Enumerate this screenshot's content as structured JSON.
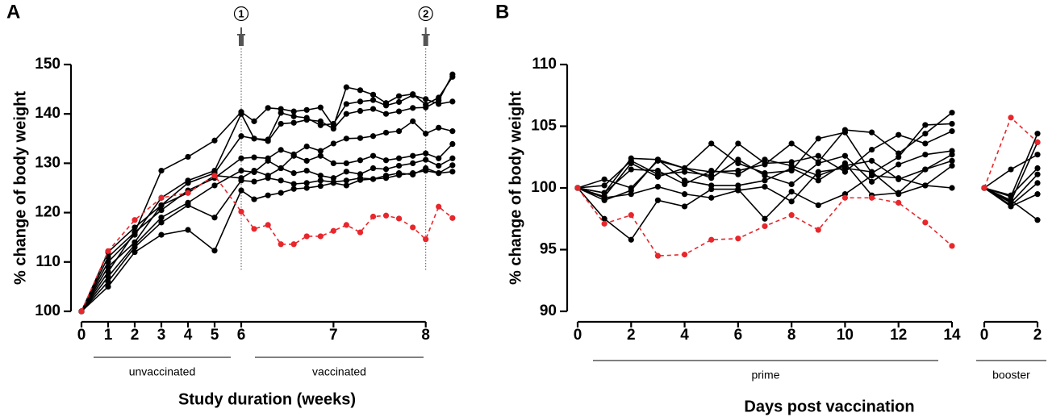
{
  "chart_data": [
    {
      "type": "line",
      "panel": "A",
      "y_label": "% change of body weight",
      "x_label": "Study duration (weeks)",
      "xlim": [
        0,
        8.3
      ],
      "xscale_segments": [
        [
          0,
          6
        ],
        [
          6,
          8.3
        ]
      ],
      "xticks": [
        0,
        1,
        2,
        3,
        4,
        5,
        6,
        7,
        8
      ],
      "ylim": [
        100,
        150
      ],
      "yticks": [
        100,
        110,
        120,
        130,
        140,
        150
      ],
      "vaccinations": [
        {
          "x": 6,
          "label": "1"
        },
        {
          "x": 8,
          "label": "2"
        }
      ],
      "periods": [
        {
          "label": "unvaccinated"
        },
        {
          "label": "vaccinated"
        }
      ],
      "x": [
        0,
        1,
        2,
        3,
        4,
        5,
        6,
        6.14,
        6.29,
        6.43,
        6.57,
        6.71,
        6.86,
        7,
        7.14,
        7.29,
        7.43,
        7.57,
        7.71,
        7.86,
        8,
        8.14,
        8.29
      ],
      "series": [
        {
          "color": "#000000",
          "values": [
            100,
            111,
            116,
            128.5,
            131.3,
            134.6,
            140.4,
            138.5,
            141.2,
            141,
            140.5,
            140.8,
            141.3,
            137.5,
            145.4,
            144.8,
            143.9,
            142.2,
            143.6,
            144,
            141.9,
            143.3,
            147.5
          ]
        },
        {
          "color": "#000000",
          "values": [
            100,
            110,
            115.5,
            123,
            126.5,
            128.5,
            140,
            135,
            134.8,
            140.2,
            139.5,
            139.2,
            137.7,
            138,
            142,
            142.5,
            142.8,
            141.7,
            142.4,
            143.8,
            143,
            142,
            142.5
          ]
        },
        {
          "color": "#000000",
          "values": [
            100,
            109,
            114,
            121.5,
            126,
            128,
            135.5,
            135,
            134.5,
            138,
            138.2,
            138.8,
            138.5,
            137,
            140,
            140.6,
            141,
            140,
            140.5,
            141.2,
            141.3,
            142.7,
            148
          ]
        },
        {
          "color": "#000000",
          "values": [
            100,
            108,
            116,
            120.5,
            124.5,
            127,
            131,
            131.2,
            131,
            132.7,
            131.8,
            133.4,
            132.5,
            134,
            135,
            135.1,
            135.5,
            136.2,
            136.5,
            138.5,
            136,
            137.2,
            136.5
          ]
        },
        {
          "color": "#000000",
          "values": [
            100,
            107,
            113.5,
            119,
            122,
            125.5,
            128.5,
            128.2,
            130.5,
            129,
            131.5,
            130.5,
            131.5,
            130,
            130,
            130.6,
            131.5,
            130.6,
            131,
            131.5,
            132,
            131,
            133.9
          ]
        },
        {
          "color": "#000000",
          "values": [
            100,
            112,
            117,
            121.5,
            124,
            127.5,
            127,
            128.5,
            127.5,
            129,
            128,
            128.5,
            127.5,
            127,
            128.3,
            127.8,
            129,
            128.8,
            129.5,
            130,
            130.7,
            129.5,
            131
          ]
        },
        {
          "color": "#000000",
          "values": [
            100,
            106,
            113,
            118,
            121.5,
            119,
            126.5,
            126.3,
            127,
            126.5,
            125.8,
            126,
            126.5,
            126.2,
            126.5,
            127,
            126.8,
            127.5,
            128,
            127.7,
            129,
            128,
            129.6
          ]
        },
        {
          "color": "#000000",
          "values": [
            100,
            105,
            112,
            115.5,
            116.5,
            112.3,
            124.5,
            122.7,
            123.5,
            124,
            124.8,
            125,
            125.4,
            126,
            125.5,
            126.6,
            126.8,
            127,
            127.6,
            128,
            128.5,
            128,
            128.3
          ]
        },
        {
          "color": "#e8262b",
          "dashed": true,
          "values": [
            100,
            112.2,
            118.5,
            123,
            124,
            127.5,
            120.2,
            116.7,
            117.5,
            113.6,
            113.6,
            115.2,
            115.2,
            116.3,
            117.5,
            116,
            119.2,
            119.4,
            118.8,
            117,
            114.6,
            121.2,
            118.9
          ]
        }
      ]
    },
    {
      "type": "line",
      "panel": "B",
      "y_label": "% change of body weight",
      "x_label": "Days post vaccination",
      "xlim": [
        0,
        14
      ],
      "xticks": [
        0,
        2,
        4,
        6,
        8,
        10,
        12,
        14
      ],
      "booster_xlim": [
        0,
        2
      ],
      "booster_xticks": [
        0,
        2
      ],
      "ylim": [
        90,
        110
      ],
      "yticks": [
        90,
        95,
        100,
        105,
        110
      ],
      "periods": [
        {
          "label": "prime"
        },
        {
          "label": "booster"
        }
      ],
      "x": [
        0,
        1,
        2,
        3,
        4,
        5,
        6,
        7,
        8,
        9,
        10,
        11,
        12,
        13,
        14
      ],
      "booster_x": [
        0,
        1,
        2
      ],
      "series": [
        {
          "color": "#000000",
          "values": [
            100,
            99.6,
            102.4,
            102.3,
            101.6,
            101.3,
            101.4,
            101.9,
            103.6,
            102.1,
            104.7,
            104.5,
            102.8,
            104.4,
            106.1
          ],
          "booster_values": [
            100,
            99.3,
            104.4
          ]
        },
        {
          "color": "#000000",
          "values": [
            100,
            100.7,
            100,
            102.2,
            101.6,
            103.6,
            102,
            101.2,
            101.4,
            104,
            104.5,
            101.2,
            102.5,
            105.1,
            105.2
          ],
          "booster_values": [
            100,
            98.9,
            103.7
          ]
        },
        {
          "color": "#000000",
          "values": [
            100,
            100.2,
            102.2,
            101.1,
            101.3,
            101,
            103.6,
            102,
            102.1,
            102.6,
            101.3,
            103.1,
            104.3,
            103.6,
            104.6
          ],
          "booster_values": [
            100,
            101.5,
            102.7
          ]
        },
        {
          "color": "#000000",
          "values": [
            100,
            99.3,
            102,
            100.9,
            101.6,
            100.8,
            102.3,
            101,
            100.3,
            102,
            102.6,
            100.5,
            101.9,
            102.7,
            103
          ],
          "booster_values": [
            100,
            99.4,
            101.6
          ]
        },
        {
          "color": "#000000",
          "values": [
            100,
            99.6,
            101.5,
            101.4,
            100.3,
            101.4,
            101.1,
            102.3,
            101.8,
            101,
            101.8,
            102.2,
            100.7,
            101.5,
            102.7
          ],
          "booster_values": [
            100,
            98.8,
            101.1
          ]
        },
        {
          "color": "#000000",
          "values": [
            100,
            99,
            99.8,
            102.3,
            100.6,
            100.2,
            100.2,
            100.6,
            101.6,
            100.6,
            102,
            99.4,
            99.6,
            101.5,
            102.2
          ],
          "booster_values": [
            100,
            98.6,
            100.4
          ]
        },
        {
          "color": "#000000",
          "values": [
            100,
            99.2,
            99.5,
            100.1,
            99.5,
            99.2,
            99.8,
            100.1,
            98.9,
            101.3,
            101.6,
            101.3,
            99.5,
            100.2,
            101.8
          ],
          "booster_values": [
            100,
            98.5,
            99.5
          ]
        },
        {
          "color": "#000000",
          "values": [
            100,
            97.5,
            95.8,
            99,
            98.5,
            99.9,
            99.9,
            97.5,
            99.7,
            98.6,
            99.5,
            101,
            100.8,
            100.2,
            100
          ],
          "booster_values": [
            100,
            99,
            97.4
          ]
        },
        {
          "color": "#e8262b",
          "dashed": true,
          "values": [
            100,
            97.1,
            97.8,
            94.5,
            94.6,
            95.8,
            95.9,
            96.9,
            97.8,
            96.6,
            99.2,
            99.2,
            98.8,
            97.2,
            95.3
          ],
          "booster_values": [
            100,
            105.7,
            103.7
          ]
        }
      ]
    }
  ]
}
